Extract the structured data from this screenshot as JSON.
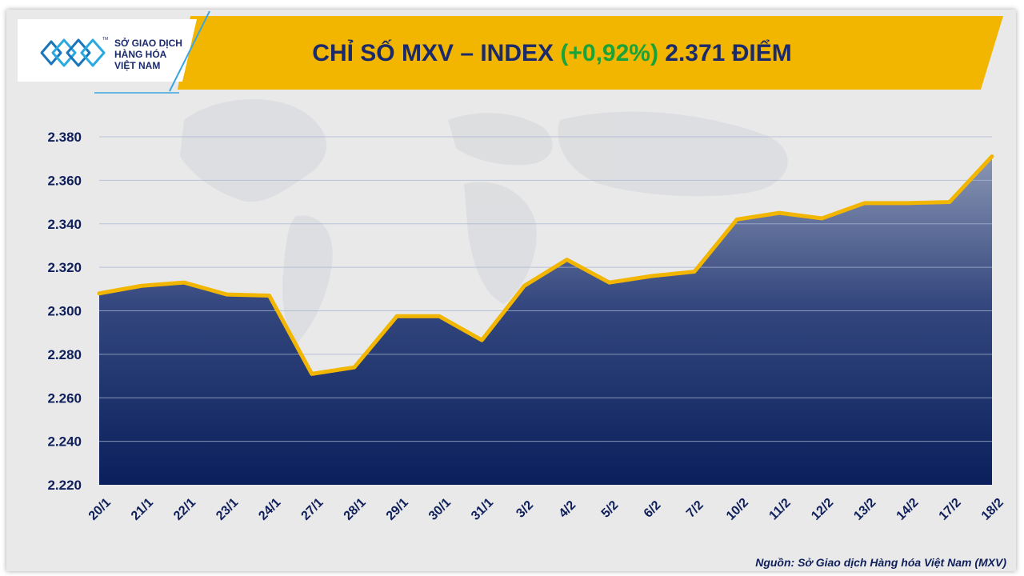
{
  "header": {
    "title_prefix": "CHỈ SỐ MXV – INDEX ",
    "title_change": "(+0,92%)",
    "title_suffix": " 2.371 ĐIỂM",
    "colors": {
      "banner": "#f2b600",
      "title": "#1b2a6b",
      "change": "#1aa33a"
    }
  },
  "logo": {
    "line1": "SỞ GIAO DỊCH",
    "line2": "HÀNG HÓA",
    "line3": "VIỆT NAM",
    "tm": "TM",
    "icon": "mxv-logo-icon"
  },
  "source": "Nguồn: Sở Giao dịch Hàng hóa Việt Nam (MXV)",
  "chart_data": {
    "type": "area",
    "categories": [
      "20/1",
      "21/1",
      "22/1",
      "23/1",
      "24/1",
      "27/1",
      "28/1",
      "29/1",
      "30/1",
      "31/1",
      "3/2",
      "4/2",
      "5/2",
      "6/2",
      "7/2",
      "10/2",
      "11/2",
      "12/2",
      "13/2",
      "14/2",
      "17/2",
      "18/2"
    ],
    "values": [
      2308,
      2311.5,
      2313,
      2307.5,
      2307,
      2271,
      2274,
      2297.5,
      2297.5,
      2286.5,
      2311.5,
      2323.5,
      2313,
      2316,
      2318,
      2342,
      2345,
      2342.5,
      2349.5,
      2349.5,
      2350,
      2371
    ],
    "ylim": [
      2220,
      2380
    ],
    "yticks": [
      "2.220",
      "2.240",
      "2.260",
      "2.280",
      "2.300",
      "2.320",
      "2.340",
      "2.360",
      "2.380"
    ],
    "ytick_values": [
      2220,
      2240,
      2260,
      2280,
      2300,
      2320,
      2340,
      2360,
      2380
    ],
    "grid": true,
    "colors": {
      "line": "#f2b600",
      "area_top": "#8a96b4",
      "area_bottom": "#0a1f5c",
      "grid": "#a9b6d2"
    }
  }
}
